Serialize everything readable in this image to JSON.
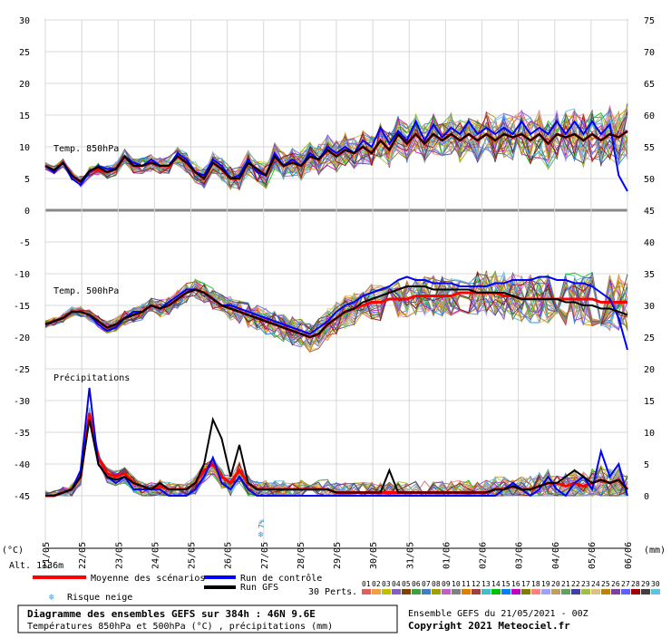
{
  "chart_data": {
    "type": "line",
    "x_dates": [
      "21/05",
      "22/05",
      "23/05",
      "24/05",
      "25/05",
      "26/05",
      "27/05",
      "28/05",
      "29/05",
      "30/05",
      "31/05",
      "01/06",
      "02/06",
      "03/06",
      "04/06",
      "05/06",
      "06/06"
    ],
    "left_axis": {
      "ticks": [
        30,
        25,
        20,
        15,
        10,
        5,
        0,
        -5,
        -10,
        -15,
        -20,
        -25,
        -30,
        -35,
        -40,
        -45
      ],
      "unit": "(°C)",
      "ylim": [
        -45,
        30
      ]
    },
    "right_axis": {
      "ticks": [
        75,
        70,
        65,
        60,
        55,
        50,
        45,
        40,
        35,
        30,
        25,
        20,
        15,
        10,
        5,
        0
      ],
      "unit": "(mm)"
    },
    "panel_labels": {
      "t850": "Temp. 850hPa",
      "t500": "Temp. 500hPa",
      "precip": "Précipitations"
    },
    "alt_label": "Alt. 1136m",
    "series": [
      {
        "name": "Moyenne des scénarios",
        "color": "#ff0000",
        "t850": [
          7,
          6.3,
          7.5,
          5.5,
          4.5,
          6,
          6.5,
          6,
          6.5,
          8.5,
          7,
          7,
          7.5,
          7,
          7,
          8.5,
          7.5,
          6,
          5,
          7.5,
          6.5,
          5,
          5,
          7.5,
          6.5,
          5.5,
          8.5,
          7,
          7.5,
          7,
          8.5,
          8,
          9.5,
          8.5,
          9.5,
          9,
          10,
          9,
          11,
          9.5,
          12,
          10.5,
          12,
          10.5,
          12,
          11,
          12,
          11,
          12,
          11,
          12,
          11,
          12,
          11.5,
          12,
          11,
          12,
          10.5,
          12,
          11.5,
          12,
          11,
          12,
          11,
          12,
          11.5,
          12.5
        ],
        "t500": [
          -18,
          -17.5,
          -17,
          -16,
          -16,
          -16.5,
          -17.5,
          -18.5,
          -18,
          -17,
          -16.5,
          -16,
          -15,
          -15.5,
          -15,
          -14,
          -13,
          -12.5,
          -13,
          -14,
          -15,
          -15.5,
          -16,
          -16.5,
          -17,
          -17.5,
          -18,
          -18.5,
          -19,
          -19.5,
          -20,
          -19.5,
          -18,
          -17,
          -16,
          -15.5,
          -15,
          -14.5,
          -14.5,
          -14,
          -14,
          -14,
          -13.5,
          -13.5,
          -13.5,
          -13.5,
          -13.5,
          -13,
          -13,
          -13,
          -13,
          -13,
          -13.5,
          -13.5,
          -14,
          -14,
          -14,
          -14,
          -14,
          -14,
          -14,
          -14,
          -14,
          -14.5,
          -14.5,
          -14.5,
          -14.5
        ],
        "precip": [
          0,
          0,
          0.5,
          1,
          3,
          13,
          6,
          3.5,
          3,
          3.5,
          2,
          1.5,
          1,
          1.5,
          1,
          1,
          1,
          2,
          4,
          5,
          3,
          2,
          4,
          2,
          1,
          1,
          1,
          1,
          1,
          1,
          1,
          1,
          1,
          0.5,
          0.5,
          0.5,
          0.5,
          0.5,
          0.5,
          0.5,
          0.5,
          0.5,
          0.5,
          0.5,
          0.5,
          0.5,
          0.5,
          0.5,
          0.5,
          0.5,
          0.5,
          1,
          1,
          1.5,
          1,
          1,
          1.5,
          2,
          2,
          1.5,
          2,
          1.5,
          2,
          2.5,
          2,
          2.5,
          1
        ]
      },
      {
        "name": "Run de contrôle",
        "color": "#0000ff",
        "t850": [
          7,
          6,
          7.5,
          5,
          4,
          6,
          7,
          6.5,
          6.5,
          8.5,
          7.5,
          7,
          8,
          7,
          7,
          9,
          8,
          6,
          5.5,
          8,
          7,
          5,
          5.5,
          8,
          6,
          5.5,
          9,
          7,
          8,
          7,
          9,
          8,
          10,
          9,
          10,
          9,
          11,
          10,
          13,
          10.5,
          12.5,
          11,
          14,
          11,
          13.5,
          11.5,
          13,
          12,
          14,
          12,
          13,
          12,
          13,
          12,
          14,
          12,
          13,
          12,
          14,
          12,
          14,
          12,
          14,
          12,
          13.5,
          5.5,
          3
        ],
        "t500": [
          -18,
          -17.5,
          -17,
          -16,
          -16,
          -16.5,
          -18,
          -19,
          -18.5,
          -17,
          -16,
          -16,
          -15,
          -15.5,
          -14.5,
          -13.5,
          -12.5,
          -12.5,
          -13,
          -14,
          -15,
          -15,
          -15.5,
          -16,
          -16.5,
          -17,
          -17.5,
          -18,
          -18.5,
          -19,
          -19.5,
          -18.5,
          -17.5,
          -16,
          -15,
          -14.5,
          -13.5,
          -13,
          -12.5,
          -12,
          -11,
          -10.5,
          -11,
          -11,
          -11.5,
          -11.5,
          -11.5,
          -12,
          -12,
          -12,
          -12,
          -11.5,
          -11.5,
          -11,
          -11,
          -11,
          -10.5,
          -10.5,
          -11,
          -11,
          -11.5,
          -11.5,
          -12,
          -13,
          -14,
          -17,
          -22
        ],
        "precip": [
          0,
          0,
          0.5,
          1,
          4,
          17,
          5,
          3,
          2,
          3,
          1,
          1,
          1,
          1,
          0,
          0,
          0,
          1,
          3,
          6,
          2,
          1,
          3,
          1,
          0,
          0,
          0,
          0,
          0,
          0,
          0,
          0,
          0,
          0,
          0,
          0,
          0,
          0,
          0,
          0,
          0,
          0,
          0,
          0,
          0,
          0,
          0,
          0,
          0,
          0,
          0,
          0,
          1,
          2,
          1,
          0,
          1,
          3,
          1,
          0,
          2,
          3,
          1,
          7,
          3,
          5,
          0
        ]
      },
      {
        "name": "Run GFS",
        "color": "#000000",
        "t850": [
          7,
          6.3,
          7.5,
          5.5,
          4.5,
          6.2,
          6.8,
          6,
          6.5,
          8.5,
          7,
          7,
          7.5,
          7,
          7,
          8.5,
          7.5,
          6,
          5,
          7.5,
          6.5,
          5,
          5,
          7.5,
          6.5,
          5.5,
          8.5,
          7,
          7.5,
          7,
          8.5,
          8,
          9.5,
          8.5,
          9.5,
          9,
          10,
          9,
          11,
          9.5,
          12,
          10.5,
          12,
          10.5,
          12,
          11,
          12,
          11,
          12,
          11,
          12,
          11,
          12,
          11.5,
          12,
          11,
          12,
          10.5,
          12,
          11.5,
          12,
          11,
          12,
          11,
          12,
          11.5,
          12.5
        ],
        "t500": [
          -18,
          -17.5,
          -17,
          -16,
          -16,
          -16.5,
          -17.5,
          -18.5,
          -18,
          -17,
          -16.5,
          -16,
          -15,
          -15.5,
          -15,
          -14,
          -13,
          -12.5,
          -13,
          -14,
          -15,
          -15.5,
          -16,
          -16.5,
          -17,
          -17.5,
          -18,
          -18.5,
          -19,
          -19.5,
          -20,
          -19.5,
          -18,
          -17,
          -16,
          -15.5,
          -14.5,
          -14,
          -13.5,
          -13,
          -12.5,
          -12,
          -12,
          -12,
          -12.5,
          -12.5,
          -12.5,
          -12.5,
          -12.5,
          -13,
          -13,
          -13,
          -13,
          -13.5,
          -14,
          -14,
          -14,
          -14,
          -14,
          -14.5,
          -14.5,
          -15,
          -15,
          -15.5,
          -15.5,
          -16,
          -16.5
        ],
        "precip": [
          0,
          0,
          0.5,
          1,
          3,
          12,
          5,
          3,
          2.5,
          3,
          2,
          1.5,
          1,
          2,
          1,
          1,
          1,
          2,
          5,
          12,
          9,
          3,
          8,
          2,
          1,
          1,
          1,
          1,
          1,
          1,
          1,
          1,
          1,
          0.5,
          0.5,
          0.5,
          0.5,
          0.5,
          0.5,
          4,
          0.5,
          0.5,
          0.5,
          0.5,
          0.5,
          0.5,
          0.5,
          0.5,
          0.5,
          0.5,
          0.5,
          1,
          1,
          1.5,
          1,
          1,
          1.5,
          2,
          2,
          3,
          4,
          3,
          2,
          2.5,
          2,
          2.5,
          1
        ]
      }
    ],
    "snow_risk": {
      "label": "7%",
      "date": "27/05"
    },
    "legend": {
      "mean": "Moyenne des scénarios",
      "control": "Run de contrôle",
      "gfs": "Run GFS",
      "snow": "Risque neige",
      "perts_label": "30 Perts.",
      "pert_numbers": [
        "01",
        "02",
        "03",
        "04",
        "05",
        "06",
        "07",
        "08",
        "09",
        "10",
        "11",
        "12",
        "13",
        "14",
        "15",
        "16",
        "17",
        "18",
        "19",
        "20",
        "21",
        "22",
        "23",
        "24",
        "25",
        "26",
        "27",
        "28",
        "29",
        "30"
      ],
      "pert_colors": [
        "#e06060",
        "#f0a040",
        "#c0c000",
        "#8060c0",
        "#804000",
        "#40a040",
        "#4080c0",
        "#a0a000",
        "#c060c0",
        "#808080",
        "#e08000",
        "#a04040",
        "#40c0c0",
        "#00c000",
        "#0080ff",
        "#c000c0",
        "#808000",
        "#ff8080",
        "#a0a0ff",
        "#c0a060",
        "#60a060",
        "#4040a0",
        "#a0c040",
        "#e0c080",
        "#c08000",
        "#8040a0",
        "#6060ff",
        "#a00000",
        "#404040",
        "#60c0e0"
      ]
    },
    "footer": {
      "title": "Diagramme des ensembles GEFS sur 384h : 46N 9.6E",
      "subtitle": "Températures 850hPa et 500hPa (°C) , précipitations (mm)",
      "run": "Ensemble GEFS du 21/05/2021 - 00Z",
      "copyright": "Copyright 2021 Meteociel.fr"
    }
  }
}
